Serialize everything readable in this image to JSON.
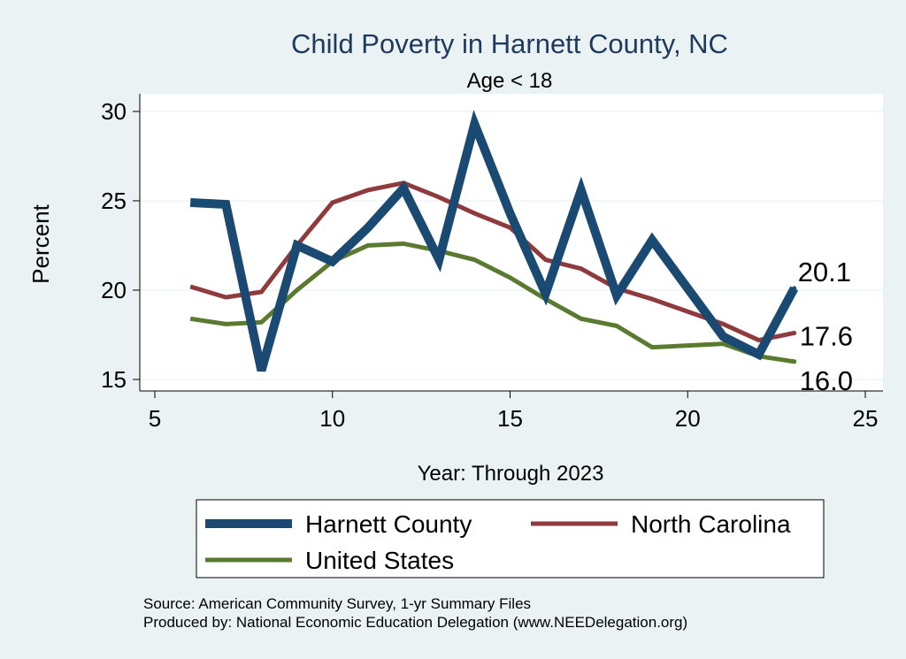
{
  "chart_data": {
    "type": "line",
    "title": "Child Poverty in Harnett County, NC",
    "subtitle": "Age < 18",
    "xlabel": "Year: Through 2023",
    "ylabel": "Percent",
    "xlim": [
      5,
      25
    ],
    "ylim": [
      15,
      30
    ],
    "xticks": [
      5,
      10,
      15,
      20,
      25
    ],
    "yticks": [
      15,
      20,
      25,
      30
    ],
    "grid": true,
    "legend_position": "bottom",
    "series": [
      {
        "name": "Harnett County",
        "color": "#1a4a72",
        "x": [
          6,
          7,
          8,
          9,
          10,
          11,
          12,
          13,
          14,
          15,
          16,
          17,
          18,
          19,
          20,
          21,
          22,
          23
        ],
        "y": [
          24.9,
          24.8,
          15.5,
          22.5,
          21.6,
          23.5,
          25.7,
          21.7,
          29.3,
          24.3,
          19.8,
          25.6,
          19.7,
          22.8,
          20.1,
          17.4,
          16.4,
          20.1
        ],
        "end_label": "20.1"
      },
      {
        "name": "North Carolina",
        "color": "#8f3a3d",
        "x": [
          6,
          7,
          8,
          9,
          10,
          11,
          12,
          13,
          14,
          15,
          16,
          17,
          18,
          19,
          20,
          21,
          22,
          23
        ],
        "y": [
          20.2,
          19.6,
          19.9,
          22.5,
          24.9,
          25.6,
          26.0,
          25.2,
          24.3,
          23.5,
          21.7,
          21.2,
          20.1,
          19.5,
          18.8,
          18.1,
          17.2,
          17.6
        ],
        "end_label": "17.6"
      },
      {
        "name": "United States",
        "color": "#5a7a2f",
        "x": [
          6,
          7,
          8,
          9,
          10,
          11,
          12,
          13,
          14,
          15,
          16,
          17,
          18,
          19,
          20,
          21,
          22,
          23
        ],
        "y": [
          18.4,
          18.1,
          18.2,
          20.0,
          21.6,
          22.5,
          22.6,
          22.2,
          21.7,
          20.7,
          19.5,
          18.4,
          18.0,
          16.8,
          16.9,
          17.0,
          16.3,
          16.0
        ],
        "end_label": "16.0"
      }
    ]
  },
  "source_note": "Source: American Community Survey, 1-yr Summary Files",
  "producer_note": "Produced by: National Economic Education Delegation (www.NEEDelegation.org)"
}
